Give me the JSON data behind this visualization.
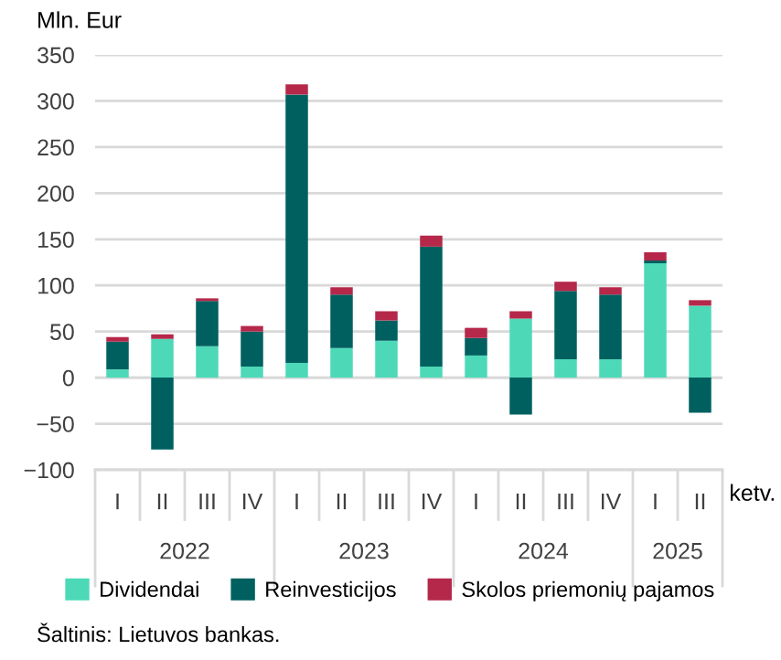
{
  "chart_data": {
    "type": "bar",
    "stacked": true,
    "ylabel": "Mln. Eur",
    "xlabel": "ketv.",
    "categories": [
      "I",
      "II",
      "III",
      "IV",
      "I",
      "II",
      "III",
      "IV",
      "I",
      "II",
      "III",
      "IV",
      "I",
      "II"
    ],
    "series": [
      {
        "name": "Dividendai",
        "color": "#4dd9b8",
        "values": [
          9,
          42,
          34,
          12,
          16,
          32,
          40,
          12,
          24,
          64,
          20,
          20,
          124,
          78
        ]
      },
      {
        "name": "Reinvesticijos",
        "color": "#006060",
        "values": [
          30,
          -78,
          49,
          38,
          291,
          58,
          22,
          130,
          19,
          -40,
          74,
          70,
          3,
          -38
        ]
      },
      {
        "name": "Skolos priemonių pajamos",
        "color": "#b5284a",
        "values": [
          5,
          5,
          3,
          6,
          11,
          8,
          10,
          12,
          11,
          8,
          10,
          8,
          9,
          6
        ]
      }
    ],
    "ylim": [
      -100,
      350
    ],
    "yticks": [
      {
        "value": -100,
        "label": "−100"
      },
      {
        "value": -50,
        "label": "−50"
      },
      0,
      50,
      100,
      150,
      200,
      250,
      300,
      350
    ],
    "grid": "y",
    "legend": "bottom",
    "annotations": [
      "2022",
      "2023",
      "2024",
      "2025",
      "Šaltinis: Lietuvos bankas."
    ]
  }
}
